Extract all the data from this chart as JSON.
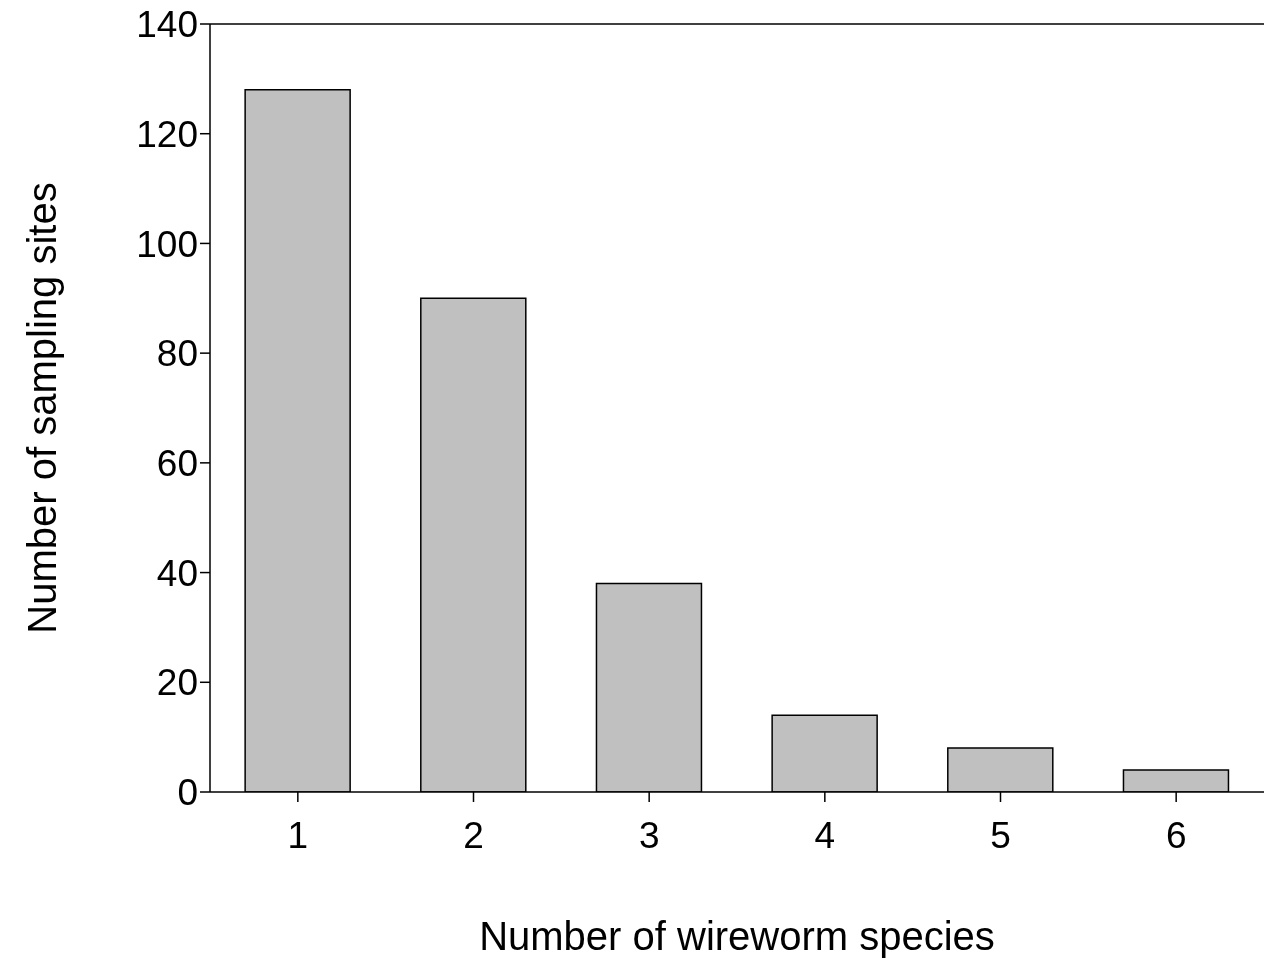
{
  "chart_data": {
    "type": "bar",
    "xlabel": "Number of wireworm species",
    "ylabel": "Number of sampling sites",
    "categories": [
      "1",
      "2",
      "3",
      "4",
      "5",
      "6"
    ],
    "values": [
      128,
      90,
      38,
      14,
      8,
      4
    ],
    "color": "#c0c0c0",
    "ylim": [
      0,
      140
    ],
    "yticks": [
      0,
      20,
      40,
      60,
      80,
      100,
      120,
      140
    ],
    "grid": false,
    "legend": false
  }
}
